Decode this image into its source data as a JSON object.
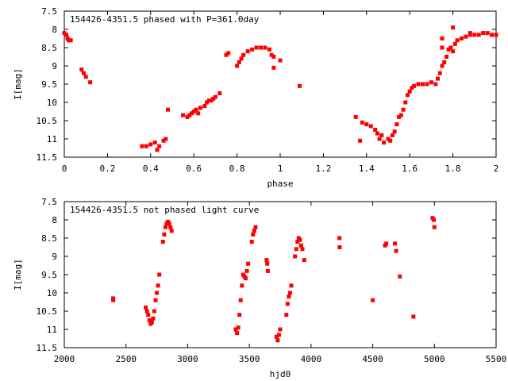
{
  "chart_data": [
    {
      "type": "scatter",
      "title": "154426-4351.5 phased with P=361.0day",
      "xlabel": "phase",
      "ylabel": "I[mag]",
      "xlim": [
        0,
        2
      ],
      "ylim": [
        11.5,
        7.5
      ],
      "y_inverted": true,
      "xticks": [
        "0",
        "0.2",
        "0.4",
        "0.6",
        "0.8",
        "1",
        "1.2",
        "1.4",
        "1.6",
        "1.8",
        "2"
      ],
      "yticks": [
        "7.5",
        "8",
        "8.5",
        "9",
        "9.5",
        "10",
        "10.5",
        "11",
        "11.5"
      ],
      "marker_color": "#ff0000",
      "series": [
        {
          "points": [
            [
              0.0,
              8.1
            ],
            [
              0.01,
              8.15
            ],
            [
              0.015,
              8.25
            ],
            [
              0.02,
              8.3
            ],
            [
              0.03,
              8.3
            ],
            [
              0.08,
              9.1
            ],
            [
              0.09,
              9.2
            ],
            [
              0.1,
              9.3
            ],
            [
              0.12,
              9.45
            ],
            [
              0.36,
              11.2
            ],
            [
              0.38,
              11.2
            ],
            [
              0.4,
              11.15
            ],
            [
              0.42,
              11.1
            ],
            [
              0.43,
              11.3
            ],
            [
              0.44,
              11.2
            ],
            [
              0.46,
              11.05
            ],
            [
              0.47,
              11.0
            ],
            [
              0.48,
              10.2
            ],
            [
              0.55,
              10.35
            ],
            [
              0.57,
              10.4
            ],
            [
              0.58,
              10.35
            ],
            [
              0.59,
              10.3
            ],
            [
              0.6,
              10.25
            ],
            [
              0.61,
              10.2
            ],
            [
              0.62,
              10.3
            ],
            [
              0.63,
              10.15
            ],
            [
              0.65,
              10.1
            ],
            [
              0.66,
              10.0
            ],
            [
              0.67,
              9.95
            ],
            [
              0.68,
              9.95
            ],
            [
              0.69,
              9.9
            ],
            [
              0.7,
              9.85
            ],
            [
              0.72,
              9.75
            ],
            [
              0.75,
              8.7
            ],
            [
              0.76,
              8.65
            ],
            [
              0.8,
              9.0
            ],
            [
              0.81,
              8.9
            ],
            [
              0.82,
              8.8
            ],
            [
              0.83,
              8.7
            ],
            [
              0.85,
              8.6
            ],
            [
              0.87,
              8.55
            ],
            [
              0.89,
              8.5
            ],
            [
              0.91,
              8.5
            ],
            [
              0.93,
              8.5
            ],
            [
              0.95,
              8.55
            ],
            [
              0.96,
              8.7
            ],
            [
              0.97,
              8.75
            ],
            [
              0.97,
              9.05
            ],
            [
              1.0,
              8.85
            ],
            [
              1.09,
              9.55
            ],
            [
              1.35,
              10.4
            ],
            [
              1.37,
              11.05
            ],
            [
              1.38,
              10.55
            ],
            [
              1.4,
              10.6
            ],
            [
              1.42,
              10.65
            ],
            [
              1.44,
              10.75
            ],
            [
              1.45,
              10.85
            ],
            [
              1.46,
              11.0
            ],
            [
              1.47,
              10.9
            ],
            [
              1.48,
              11.1
            ],
            [
              1.5,
              11.0
            ],
            [
              1.51,
              11.05
            ],
            [
              1.52,
              10.9
            ],
            [
              1.53,
              10.8
            ],
            [
              1.54,
              10.6
            ],
            [
              1.55,
              10.4
            ],
            [
              1.56,
              10.35
            ],
            [
              1.57,
              10.2
            ],
            [
              1.58,
              10.0
            ],
            [
              1.59,
              9.8
            ],
            [
              1.6,
              9.7
            ],
            [
              1.61,
              9.6
            ],
            [
              1.62,
              9.55
            ],
            [
              1.64,
              9.5
            ],
            [
              1.66,
              9.5
            ],
            [
              1.68,
              9.5
            ],
            [
              1.7,
              9.45
            ],
            [
              1.72,
              9.5
            ],
            [
              1.73,
              9.35
            ],
            [
              1.74,
              9.2
            ],
            [
              1.75,
              9.0
            ],
            [
              1.76,
              8.9
            ],
            [
              1.77,
              8.75
            ],
            [
              1.78,
              8.55
            ],
            [
              1.79,
              8.5
            ],
            [
              1.8,
              8.6
            ],
            [
              1.81,
              8.4
            ],
            [
              1.82,
              8.3
            ],
            [
              1.84,
              8.25
            ],
            [
              1.86,
              8.2
            ],
            [
              1.88,
              8.15
            ],
            [
              1.9,
              8.15
            ],
            [
              1.92,
              8.15
            ],
            [
              1.94,
              8.1
            ],
            [
              1.96,
              8.1
            ],
            [
              1.98,
              8.15
            ],
            [
              2.0,
              8.15
            ],
            [
              1.75,
              8.5
            ],
            [
              1.75,
              8.25
            ],
            [
              1.8,
              7.95
            ],
            [
              1.88,
              8.1
            ]
          ]
        }
      ]
    },
    {
      "type": "scatter",
      "title": "154426-4351.5 not phased light curve",
      "xlabel": "hjd0",
      "ylabel": "I[mag]",
      "xlim": [
        2000,
        5500
      ],
      "ylim": [
        11.5,
        7.5
      ],
      "y_inverted": true,
      "xticks": [
        "2000",
        "2500",
        "3000",
        "3500",
        "4000",
        "4500",
        "5000",
        "5500"
      ],
      "yticks": [
        "7.5",
        "8",
        "8.5",
        "9",
        "9.5",
        "10",
        "10.5",
        "11",
        "11.5"
      ],
      "marker_color": "#ff0000",
      "series": [
        {
          "points": [
            [
              2395,
              10.15
            ],
            [
              2397,
              10.2
            ],
            [
              2660,
              10.4
            ],
            [
              2670,
              10.5
            ],
            [
              2680,
              10.6
            ],
            [
              2690,
              10.75
            ],
            [
              2700,
              10.85
            ],
            [
              2710,
              10.8
            ],
            [
              2720,
              10.7
            ],
            [
              2730,
              10.5
            ],
            [
              2740,
              10.2
            ],
            [
              2750,
              10.0
            ],
            [
              2760,
              9.8
            ],
            [
              2770,
              9.5
            ],
            [
              2800,
              8.6
            ],
            [
              2810,
              8.4
            ],
            [
              2820,
              8.2
            ],
            [
              2830,
              8.1
            ],
            [
              2840,
              8.05
            ],
            [
              2850,
              8.1
            ],
            [
              2860,
              8.2
            ],
            [
              2870,
              8.3
            ],
            [
              3390,
              11.0
            ],
            [
              3400,
              11.1
            ],
            [
              3410,
              10.95
            ],
            [
              3420,
              10.6
            ],
            [
              3430,
              10.2
            ],
            [
              3440,
              9.8
            ],
            [
              3450,
              9.5
            ],
            [
              3460,
              9.55
            ],
            [
              3470,
              9.6
            ],
            [
              3480,
              9.4
            ],
            [
              3490,
              9.2
            ],
            [
              3520,
              8.6
            ],
            [
              3530,
              8.4
            ],
            [
              3540,
              8.3
            ],
            [
              3550,
              8.2
            ],
            [
              3640,
              9.1
            ],
            [
              3645,
              9.2
            ],
            [
              3650,
              9.4
            ],
            [
              3720,
              11.2
            ],
            [
              3730,
              11.3
            ],
            [
              3740,
              11.15
            ],
            [
              3750,
              11.0
            ],
            [
              3800,
              10.6
            ],
            [
              3810,
              10.3
            ],
            [
              3820,
              10.1
            ],
            [
              3830,
              10.0
            ],
            [
              3840,
              9.8
            ],
            [
              3870,
              9.0
            ],
            [
              3880,
              8.8
            ],
            [
              3890,
              8.6
            ],
            [
              3900,
              8.5
            ],
            [
              3910,
              8.55
            ],
            [
              3920,
              8.7
            ],
            [
              3930,
              8.8
            ],
            [
              3945,
              9.1
            ],
            [
              4230,
              8.5
            ],
            [
              4232,
              8.75
            ],
            [
              4500,
              10.2
            ],
            [
              4600,
              8.7
            ],
            [
              4610,
              8.65
            ],
            [
              4680,
              8.65
            ],
            [
              4690,
              8.85
            ],
            [
              4720,
              9.55
            ],
            [
              4830,
              10.65
            ],
            [
              4985,
              7.95
            ],
            [
              4995,
              8.0
            ],
            [
              5000,
              8.2
            ]
          ]
        }
      ]
    }
  ]
}
